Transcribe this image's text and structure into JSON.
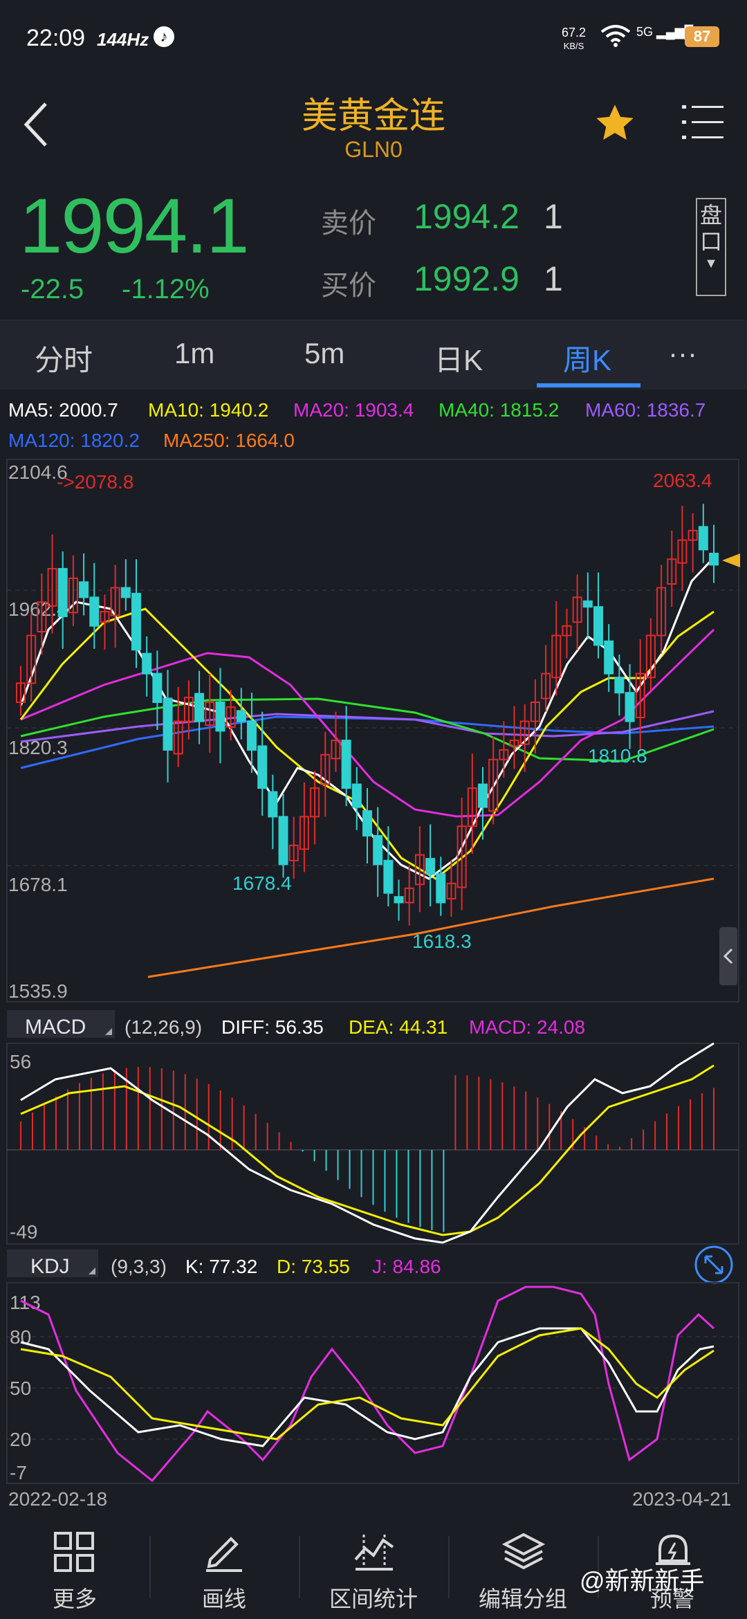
{
  "status_bar": {
    "time": "22:09",
    "refresh": "144Hz",
    "net_speed_value": "67.2",
    "net_speed_unit": "KB/S",
    "signal": "5G",
    "battery": "87"
  },
  "header": {
    "title": "美黄金连",
    "code": "GLN0"
  },
  "quote": {
    "price": "1994.1",
    "change": "-22.5",
    "change_pct": "-1.12%",
    "ask_label": "卖价",
    "ask": "1994.2",
    "ask_qty": "1",
    "bid_label": "买价",
    "bid": "1992.9",
    "bid_qty": "1",
    "pankou_line1": "盘",
    "pankou_line2": "口"
  },
  "tabs": [
    {
      "label": "分时"
    },
    {
      "label": "1m"
    },
    {
      "label": "5m"
    },
    {
      "label": "日K"
    },
    {
      "label": "周K",
      "active": true
    },
    {
      "label": "···"
    }
  ],
  "ma_legend": {
    "ma5": "MA5: 2000.7",
    "ma10": "MA10: 1940.2",
    "ma20": "MA20: 1903.4",
    "ma40": "MA40: 1815.2",
    "ma60": "MA60: 1836.7",
    "ma120": "MA120: 1820.2",
    "ma250": "MA250: 1664.0"
  },
  "price_axis": {
    "top": "2104.6",
    "mid1": "1962.4",
    "mid2": "1820.3",
    "mid3": "1678.1",
    "bottom": "1535.9"
  },
  "annotations": {
    "high_left": "->2078.8",
    "high_right": "2063.4",
    "low_1": "1678.4",
    "low_2": "1618.3",
    "low_3": "1810.8"
  },
  "macd_panel": {
    "label": "MACD",
    "params": "(12,26,9)",
    "diff": "DIFF: 56.35",
    "dea": "DEA: 44.31",
    "macd": "MACD: 24.08",
    "axis_top": "56",
    "axis_bottom": "-49"
  },
  "kdj_panel": {
    "label": "KDJ",
    "params": "(9,3,3)",
    "k": "K: 77.32",
    "d": "D: 73.55",
    "j": "J: 84.86",
    "axis": [
      "113",
      "80",
      "50",
      "20",
      "-7"
    ]
  },
  "date_range": {
    "start": "2022-02-18",
    "end": "2023-04-21"
  },
  "bottom_nav": [
    {
      "label": "更多",
      "icon": "grid-icon"
    },
    {
      "label": "画线",
      "icon": "draw-line-icon"
    },
    {
      "label": "区间统计",
      "icon": "chart-stats-icon"
    },
    {
      "label": "编辑分组",
      "icon": "layers-icon"
    },
    {
      "label": "预警",
      "icon": "bell-icon"
    }
  ],
  "watermark": "@新新新手",
  "colors": {
    "up": "#e02b2b",
    "down": "#2fd1d1",
    "price_green": "#2fbf5f",
    "accent": "#3b8cff",
    "title": "#f0b323"
  },
  "chart_data": {
    "type": "candlestick",
    "x_start": "2022-02-18",
    "x_end": "2023-04-21",
    "ylim": [
      1535.9,
      2104.6
    ],
    "close_approx": [
      1870,
      1920,
      1955,
      1990,
      1940,
      1980,
      1960,
      1930,
      1945,
      1970,
      1960,
      1905,
      1880,
      1850,
      1800,
      1830,
      1855,
      1830,
      1850,
      1820,
      1845,
      1830,
      1800,
      1760,
      1730,
      1680,
      1700,
      1730,
      1760,
      1795,
      1810,
      1760,
      1740,
      1710,
      1680,
      1650,
      1640,
      1655,
      1690,
      1670,
      1640,
      1660,
      1720,
      1760,
      1740,
      1790,
      1800,
      1810,
      1830,
      1850,
      1880,
      1920,
      1930,
      1960,
      1950,
      1910,
      1880,
      1860,
      1830,
      1880,
      1920,
      1970,
      2000,
      2020,
      2030,
      2010,
      1994.1
    ]
  }
}
